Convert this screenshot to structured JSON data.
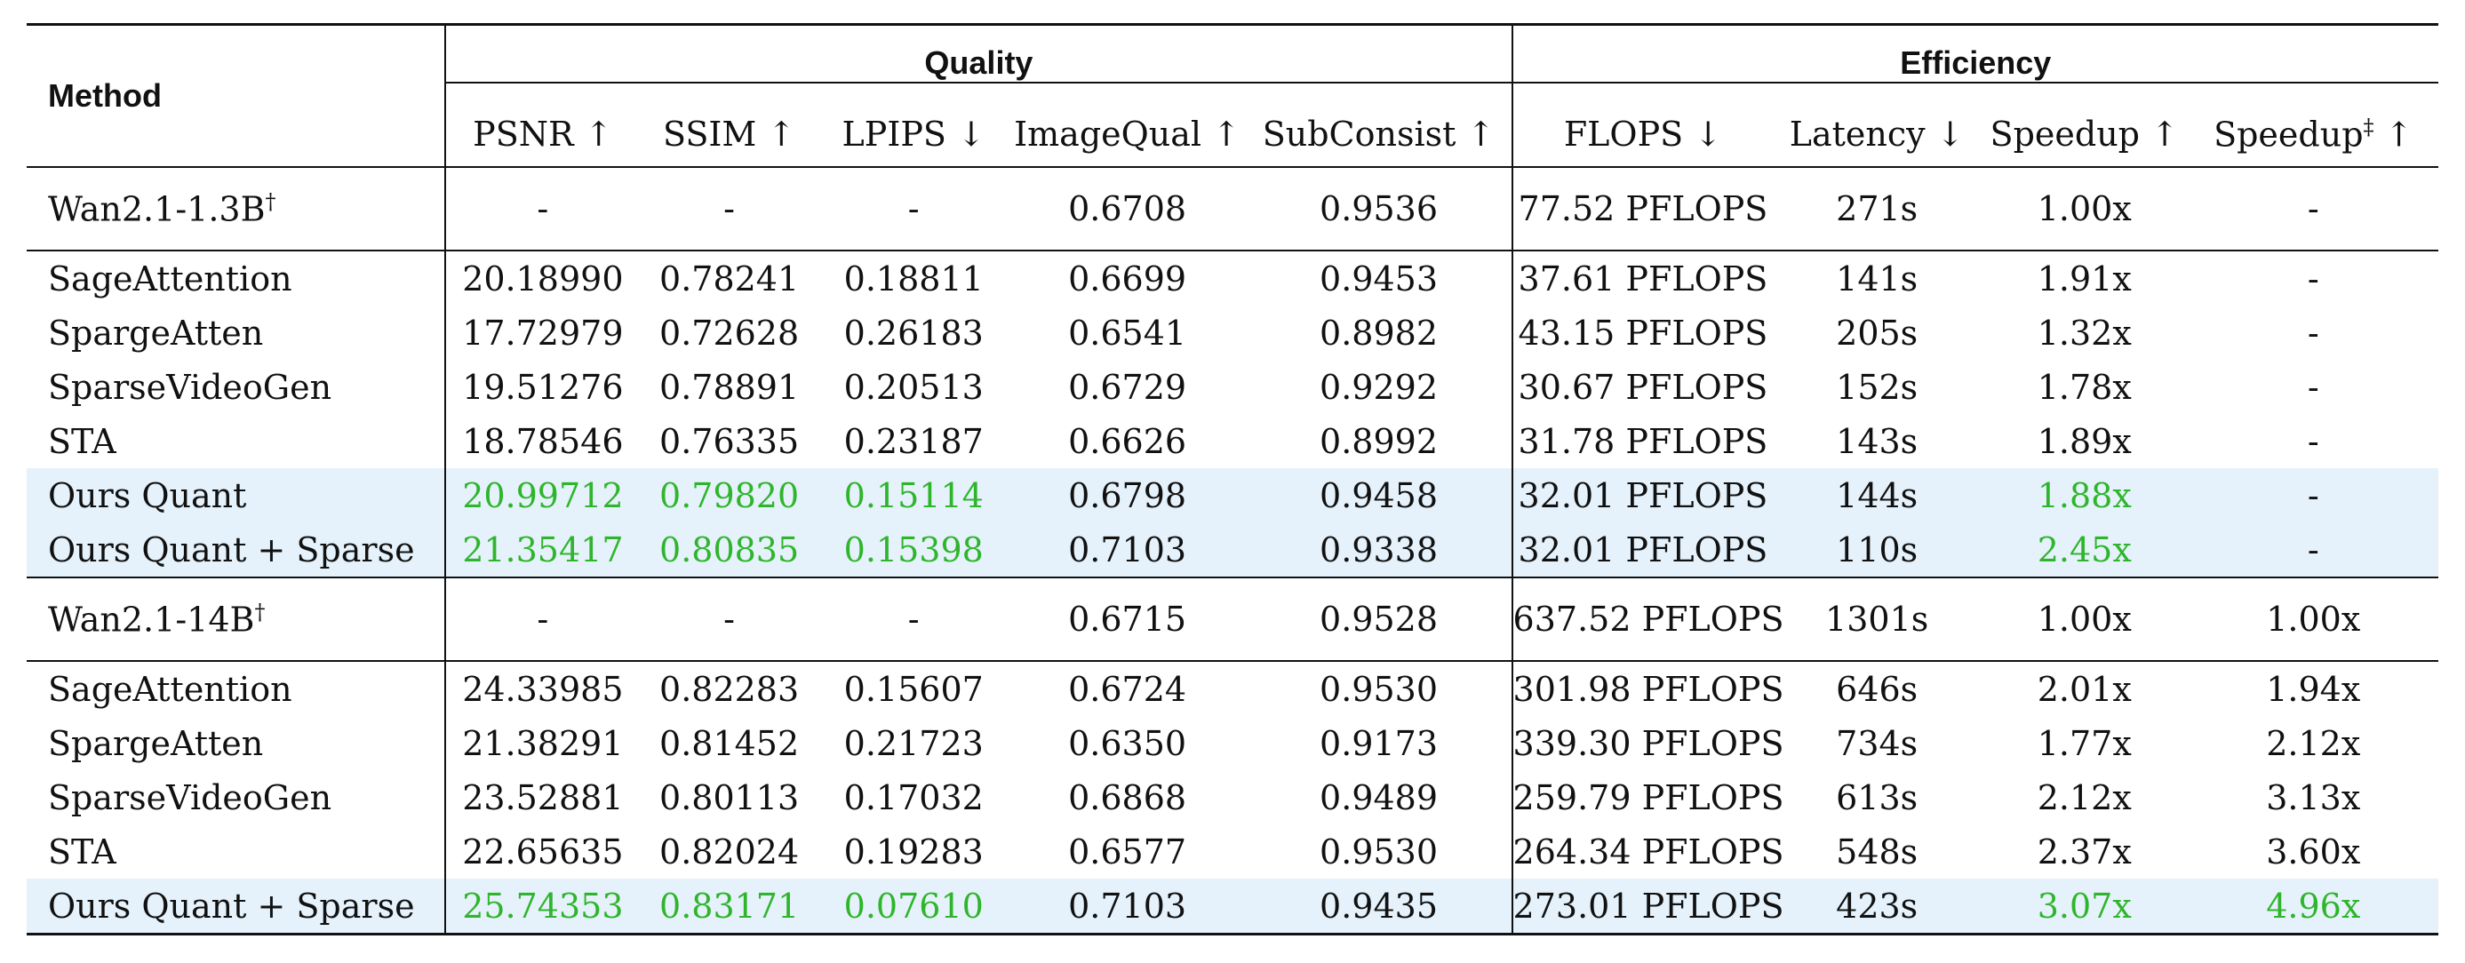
{
  "header": {
    "method": "Method",
    "quality": "Quality",
    "efficiency": "Efficiency",
    "columns": [
      "PSNR ↑",
      "SSIM ↑",
      "LPIPS ↓",
      "ImageQual ↑",
      "SubConsist ↑",
      "FLOPS ↓",
      "Latency ↓",
      "Speedup ↑",
      "Speedup",
      "‡",
      "↑"
    ]
  },
  "sections": [
    {
      "baseline": {
        "name": "Wan2.1-1.3B",
        "mark": "†",
        "values": [
          "-",
          "-",
          "-",
          "0.6708",
          "0.9536",
          "77.52 PFLOPS",
          "271s",
          "1.00x",
          "-"
        ]
      },
      "rows": [
        {
          "name": "SageAttention",
          "values": [
            "20.18990",
            "0.78241",
            "0.18811",
            "0.6699",
            "0.9453",
            "37.61 PFLOPS",
            "141s",
            "1.91x",
            "-"
          ]
        },
        {
          "name": "SpargeAtten",
          "values": [
            "17.72979",
            "0.72628",
            "0.26183",
            "0.6541",
            "0.8982",
            "43.15 PFLOPS",
            "205s",
            "1.32x",
            "-"
          ]
        },
        {
          "name": "SparseVideoGen",
          "values": [
            "19.51276",
            "0.78891",
            "0.20513",
            "0.6729",
            "0.9292",
            "30.67 PFLOPS",
            "152s",
            "1.78x",
            "-"
          ]
        },
        {
          "name": "STA",
          "values": [
            "18.78546",
            "0.76335",
            "0.23187",
            "0.6626",
            "0.8992",
            "31.78 PFLOPS",
            "143s",
            "1.89x",
            "-"
          ]
        },
        {
          "name": "Ours Quant",
          "values": [
            "20.99712",
            "0.79820",
            "0.15114",
            "0.6798",
            "0.9458",
            "32.01 PFLOPS",
            "144s",
            "1.88x",
            "-"
          ]
        },
        {
          "name": "Ours Quant + Sparse",
          "values": [
            "21.35417",
            "0.80835",
            "0.15398",
            "0.7103",
            "0.9338",
            "32.01 PFLOPS",
            "110s",
            "2.45x",
            "-"
          ]
        }
      ]
    },
    {
      "baseline": {
        "name": "Wan2.1-14B",
        "mark": "†",
        "values": [
          "-",
          "-",
          "-",
          "0.6715",
          "0.9528",
          "637.52 PFLOPS",
          "1301s",
          "1.00x",
          "1.00x"
        ]
      },
      "rows": [
        {
          "name": "SageAttention",
          "values": [
            "24.33985",
            "0.82283",
            "0.15607",
            "0.6724",
            "0.9530",
            "301.98 PFLOPS",
            "646s",
            "2.01x",
            "1.94x"
          ]
        },
        {
          "name": "SpargeAtten",
          "values": [
            "21.38291",
            "0.81452",
            "0.21723",
            "0.6350",
            "0.9173",
            "339.30 PFLOPS",
            "734s",
            "1.77x",
            "2.12x"
          ]
        },
        {
          "name": "SparseVideoGen",
          "values": [
            "23.52881",
            "0.80113",
            "0.17032",
            "0.6868",
            "0.9489",
            "259.79 PFLOPS",
            "613s",
            "2.12x",
            "3.13x"
          ]
        },
        {
          "name": "STA",
          "values": [
            "22.65635",
            "0.82024",
            "0.19283",
            "0.6577",
            "0.9530",
            "264.34 PFLOPS",
            "548s",
            "2.37x",
            "3.60x"
          ]
        },
        {
          "name": "Ours Quant + Sparse",
          "values": [
            "25.74353",
            "0.83171",
            "0.07610",
            "0.7103",
            "0.9435",
            "273.01 PFLOPS",
            "423s",
            "3.07x",
            "4.96x"
          ]
        }
      ]
    }
  ],
  "colors": {
    "highlight_bg": "#e5f2fb",
    "good_text": "#2fb52c"
  }
}
